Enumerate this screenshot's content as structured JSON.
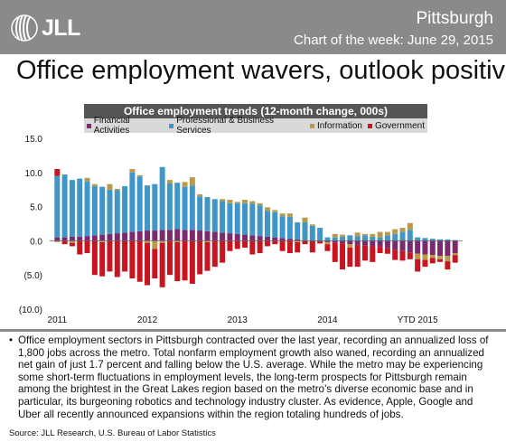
{
  "header": {
    "logo_text": "JLL",
    "city": "Pittsburgh",
    "chart_of_week": "Chart of the week: June 29, 2015"
  },
  "headline": "Office employment wavers, outlook positive",
  "footer": {
    "bullet": "Office employment sectors in Pittsburgh contracted over the last year, recording an annualized loss of 1,800 jobs across the metro. Total nonfarm employment growth also waned, recording an annualized net gain of just 1.7 percent and falling below the U.S. average. While the metro may be experiencing some short-term fluctuations in employment levels, the long-term prospects for Pittsburgh remain among the brightest in the Great Lakes region based on the metro’s diverse economic base and in particular, its burgeoning robotics and technology industry cluster. As evidence, Apple, Google and Uber all recently announced expansions within the region totaling hundreds of jobs.",
    "source": "Source: JLL Research, U.S. Bureau of Labor Statistics"
  },
  "chart_data": {
    "type": "bar",
    "stacked": true,
    "title": "Office employment trends (12-month change, 000s)",
    "y_tick_labels": [
      "15.0",
      "10.0",
      "5.0",
      "0.0",
      "(5.0)",
      "(10.0)"
    ],
    "y_ticks": [
      15,
      10,
      5,
      0,
      -5,
      -10
    ],
    "ylim": [
      -10,
      15
    ],
    "x_tick_labels": [
      "2011",
      "2012",
      "2013",
      "2014",
      "YTD 2015"
    ],
    "x_tick_positions": [
      0,
      12,
      24,
      36,
      48
    ],
    "colors": {
      "Financial Activities": "#7b2a6e",
      "Professional & Business Services": "#3f96c7",
      "Information": "#b89b4a",
      "Government": "#c8141e"
    },
    "series": [
      {
        "name": "Financial Activities",
        "values": [
          0.5,
          0.5,
          0.6,
          0.6,
          0.7,
          0.8,
          0.9,
          1.0,
          1.1,
          1.2,
          1.3,
          1.4,
          1.5,
          1.5,
          1.6,
          1.6,
          1.7,
          1.6,
          1.6,
          1.5,
          1.4,
          1.3,
          1.2,
          1.1,
          1.0,
          0.9,
          0.8,
          0.7,
          0.6,
          0.5,
          0.4,
          0.3,
          0.2,
          0.1,
          0.0,
          -0.1,
          -0.2,
          -0.3,
          -0.4,
          -0.5,
          -0.6,
          -0.7,
          -0.8,
          -0.9,
          -1.1,
          -1.3,
          -1.5,
          -1.7,
          -1.9,
          -2.0,
          -2.1,
          -2.2,
          -2.2,
          -1.8
        ]
      },
      {
        "name": "Professional & Business Services",
        "values": [
          9.0,
          9.2,
          8.3,
          8.5,
          8.0,
          7.2,
          7.0,
          6.5,
          6.3,
          6.8,
          8.7,
          8.0,
          6.6,
          6.8,
          9.2,
          6.8,
          6.8,
          6.3,
          6.5,
          5.0,
          5.0,
          4.8,
          4.6,
          4.4,
          4.5,
          4.6,
          4.6,
          4.5,
          3.8,
          3.7,
          3.2,
          3.2,
          2.5,
          2.6,
          2.2,
          1.9,
          0.5,
          0.5,
          0.6,
          0.8,
          0.7,
          0.8,
          0.6,
          0.5,
          0.8,
          1.0,
          1.3,
          1.6,
          0.5,
          0.4,
          0.3,
          0.2,
          0.2,
          0.1
        ]
      },
      {
        "name": "Information",
        "values": [
          -0.2,
          0.0,
          -0.3,
          0.0,
          0.5,
          0.3,
          -0.2,
          0.8,
          0.2,
          0.0,
          0.5,
          0.2,
          -0.3,
          -1.2,
          -0.3,
          0.5,
          -0.2,
          0.7,
          1.2,
          0.3,
          -0.2,
          0.0,
          0.3,
          0.5,
          0.2,
          0.5,
          0.4,
          0.3,
          0.5,
          0.3,
          0.4,
          0.5,
          -0.2,
          0.7,
          0.2,
          0.0,
          -0.3,
          0.5,
          0.3,
          -0.5,
          0.5,
          0.2,
          0.4,
          0.8,
          0.5,
          0.7,
          0.6,
          1.0,
          -0.8,
          -0.8,
          -0.4,
          -0.5,
          -0.8,
          -0.3
        ]
      },
      {
        "name": "Government",
        "values": [
          1.0,
          -0.5,
          -0.5,
          -2.0,
          -1.8,
          -5.0,
          -5.0,
          -4.5,
          -5.3,
          -4.5,
          -5.5,
          -6.0,
          -6.2,
          -4.3,
          -6.5,
          -5.0,
          -5.7,
          -5.8,
          -6.3,
          -4.9,
          -4.2,
          -3.8,
          -3.2,
          -1.5,
          -1.2,
          -1.0,
          -2.0,
          -1.8,
          -0.8,
          -0.5,
          -1.5,
          -1.8,
          -1.5,
          -0.5,
          -1.7,
          -0.3,
          -1.0,
          -2.8,
          -3.8,
          -2.8,
          -3.2,
          -2.2,
          -2.3,
          -0.9,
          -0.8,
          -1.5,
          -1.4,
          -1.0,
          -1.8,
          -1.0,
          -0.8,
          -0.4,
          -1.2,
          -1.1
        ]
      }
    ]
  }
}
